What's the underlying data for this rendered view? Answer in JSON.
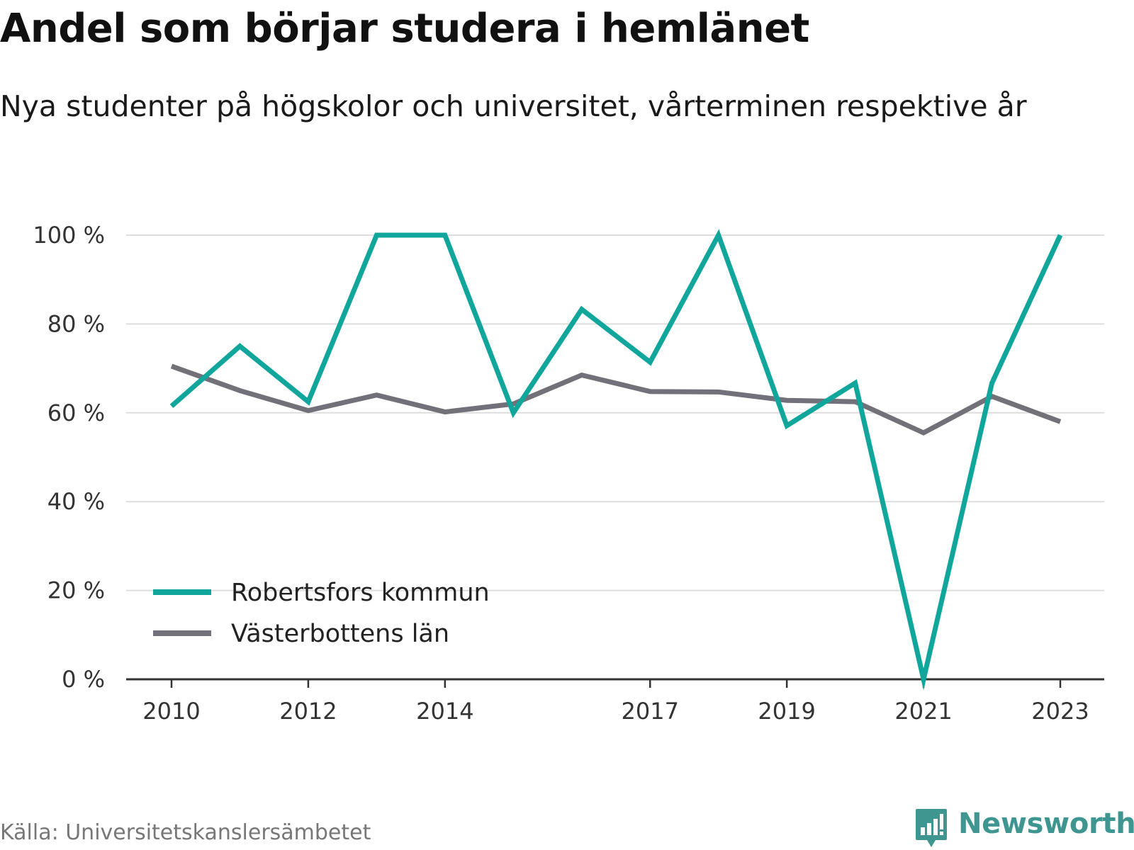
{
  "header": {
    "title": "Andel som börjar studera i hemlänet",
    "subtitle": "Nya studenter på högskolor och universitet, vårterminen respektive år"
  },
  "footer": {
    "source": "Källa: Universitetskanslersämbetet",
    "brand": "Newsworthy",
    "brand_icon": "bar-chart-speech-bubble-icon"
  },
  "colors": {
    "series1": "#11a69b",
    "series2": "#727179",
    "grid": "#dddddd",
    "axis": "#333333",
    "brand": "#3f9690"
  },
  "chart_data": {
    "type": "line",
    "title": "Andel som börjar studera i hemlänet",
    "subtitle": "Nya studenter på högskolor och universitet, vårterminen respektive år",
    "x": [
      2010,
      2011,
      2012,
      2013,
      2014,
      2015,
      2016,
      2017,
      2018,
      2019,
      2020,
      2021,
      2022,
      2023
    ],
    "x_ticks": [
      "2010",
      "2012",
      "2014",
      "2017",
      "2019",
      "2021",
      "2023"
    ],
    "y_ticks": [
      "0 %",
      "20 %",
      "40 %",
      "60 %",
      "80 %",
      "100 %"
    ],
    "ylim": [
      0,
      100
    ],
    "grid": true,
    "legend_position": "bottom-left",
    "series": [
      {
        "name": "Robertsfors kommun",
        "values": [
          61.5,
          75,
          62.5,
          100,
          100,
          60,
          83.3,
          71.4,
          100,
          57.1,
          66.7,
          0,
          66.7,
          100
        ]
      },
      {
        "name": "Västerbottens län",
        "values": [
          70.5,
          65,
          60.5,
          64,
          60.2,
          62,
          68.5,
          64.8,
          64.7,
          62.8,
          62.5,
          55.5,
          63.7,
          58
        ]
      }
    ]
  }
}
